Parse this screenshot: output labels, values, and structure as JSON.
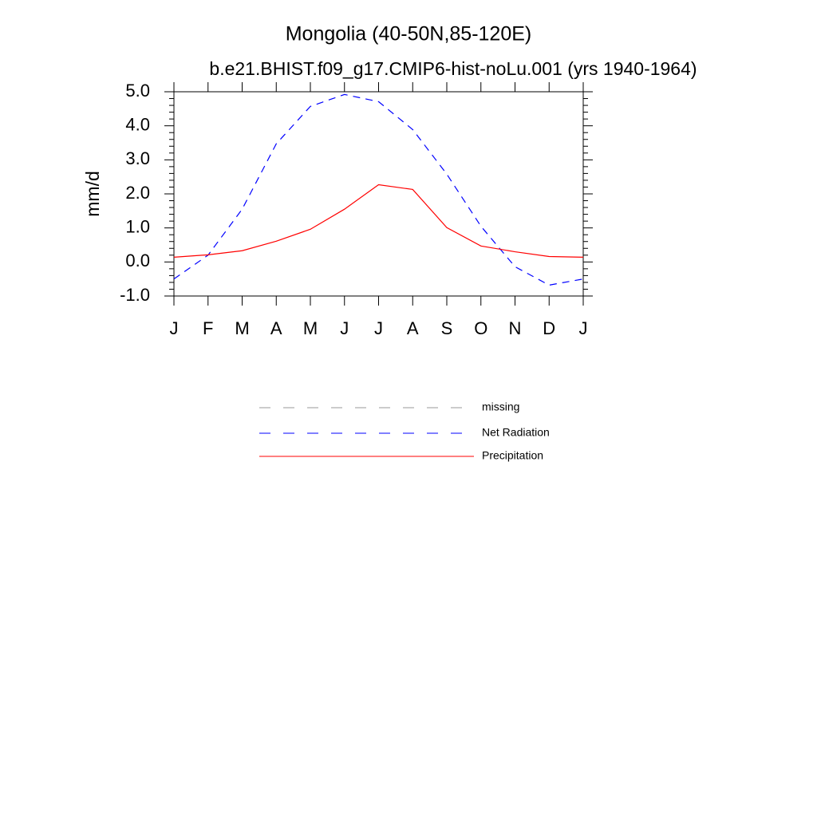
{
  "chart_data": {
    "type": "line",
    "title": "Mongolia (40-50N,85-120E)",
    "subtitle": "b.e21.BHIST.f09_g17.CMIP6-hist-noLu.001 (yrs 1940-1964)",
    "y_label": "mm/d",
    "categories": [
      "J",
      "F",
      "M",
      "A",
      "M",
      "J",
      "J",
      "A",
      "S",
      "O",
      "N",
      "D",
      "J"
    ],
    "series": [
      {
        "name": "missing",
        "color": "#999999",
        "dashed": true,
        "values": [
          null,
          null,
          null,
          null,
          null,
          null,
          null,
          null,
          null,
          null,
          null,
          null,
          null
        ]
      },
      {
        "name": "Net Radiation",
        "color": "#0000ff",
        "dashed": true,
        "values": [
          -0.5,
          0.2,
          1.55,
          3.47,
          4.57,
          4.92,
          4.71,
          3.89,
          2.58,
          1.05,
          -0.14,
          -0.68,
          -0.5
        ]
      },
      {
        "name": "Precipitation",
        "color": "#ff0000",
        "dashed": false,
        "values": [
          0.14,
          0.21,
          0.33,
          0.61,
          0.96,
          1.55,
          2.27,
          2.13,
          1.01,
          0.47,
          0.3,
          0.16,
          0.14
        ]
      }
    ],
    "ylim": [
      -1,
      5
    ],
    "yticks": [
      {
        "value": -1,
        "label": "-1.0"
      },
      {
        "value": 0,
        "label": "0.0"
      },
      {
        "value": 1,
        "label": "1.0"
      },
      {
        "value": 2,
        "label": "2.0"
      },
      {
        "value": 3,
        "label": "3.0"
      },
      {
        "value": 4,
        "label": "4.0"
      },
      {
        "value": 5,
        "label": "5.0"
      }
    ],
    "grid": false
  }
}
